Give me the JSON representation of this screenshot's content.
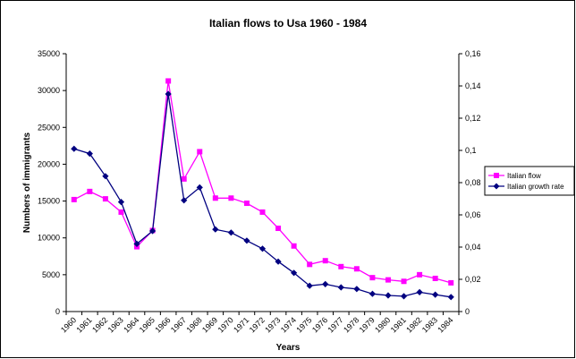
{
  "chart_data": {
    "type": "line",
    "title": "Italian flows to Usa 1960 - 1984",
    "xlabel": "Years",
    "ylabel": "Numbers of immigrants",
    "y2label": "",
    "categories": [
      "1960",
      "1961",
      "1962",
      "1963",
      "1964",
      "1965",
      "1966",
      "1967",
      "1968",
      "1969",
      "1970",
      "1971",
      "1972",
      "1973",
      "1974",
      "1975",
      "1976",
      "1977",
      "1978",
      "1979",
      "1980",
      "1981",
      "1982",
      "1983",
      "1984"
    ],
    "ylim": [
      0,
      35000
    ],
    "yticks": [
      "0",
      "5000",
      "10000",
      "15000",
      "20000",
      "25000",
      "30000",
      "35000"
    ],
    "y2lim": [
      0,
      0.16
    ],
    "y2ticks": [
      "0",
      "0,02",
      "0,04",
      "0,06",
      "0,08",
      "0,1",
      "0,12",
      "0,14",
      "0,16"
    ],
    "grid": false,
    "legend_position": "right",
    "series": [
      {
        "name": "Italian flow",
        "axis": "left",
        "color": "#ff00ff",
        "marker": "square",
        "values": [
          15200,
          16300,
          15300,
          13500,
          8800,
          11000,
          31300,
          18000,
          21700,
          15400,
          15400,
          14700,
          13500,
          11300,
          8900,
          6400,
          6900,
          6100,
          5800,
          4600,
          4300,
          4100,
          5000,
          4500,
          3900
        ]
      },
      {
        "name": "Italian growth rate",
        "axis": "right",
        "color": "#000080",
        "marker": "diamond",
        "values": [
          0.101,
          0.098,
          0.084,
          0.068,
          0.042,
          0.05,
          0.135,
          0.069,
          0.077,
          0.051,
          0.049,
          0.044,
          0.039,
          0.031,
          0.024,
          0.016,
          0.017,
          0.015,
          0.014,
          0.011,
          0.01,
          0.0095,
          0.012,
          0.0105,
          0.009
        ]
      }
    ]
  }
}
